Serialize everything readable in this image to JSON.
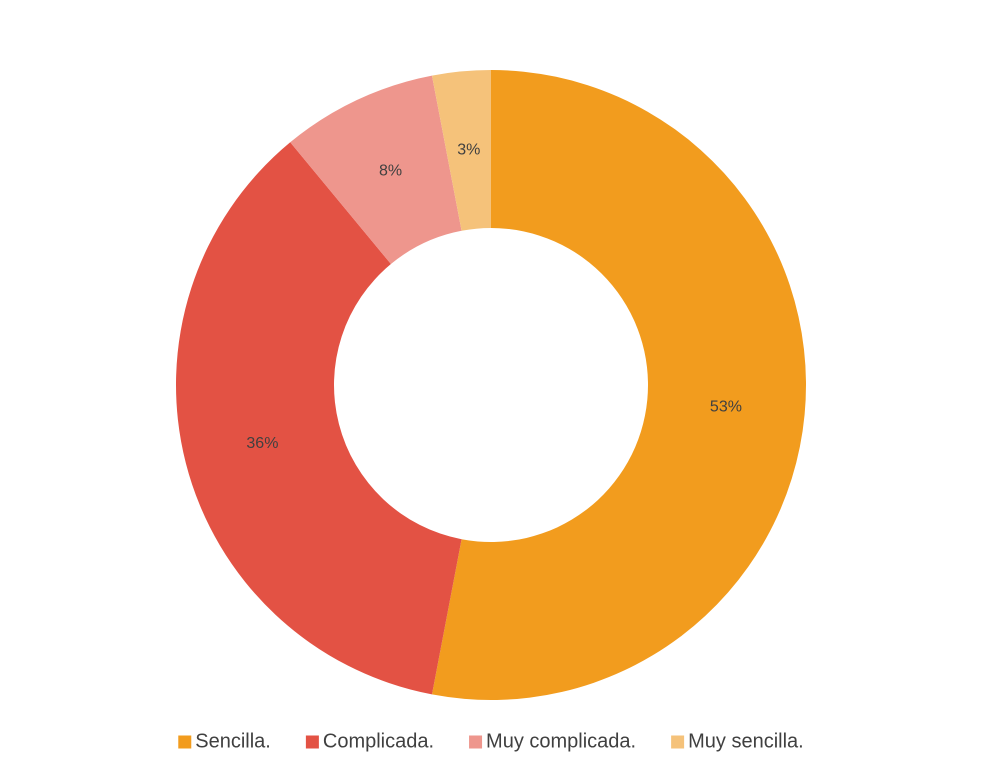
{
  "chart_data": {
    "type": "donut",
    "categories": [
      "Sencilla.",
      "Complicada.",
      "Muy complicada.",
      "Muy sencilla."
    ],
    "values": [
      53,
      36,
      8,
      3
    ],
    "value_labels": [
      "53%",
      "36%",
      "8%",
      "3%"
    ],
    "colors": [
      "#f29c1e",
      "#e35244",
      "#ee968d",
      "#f5c27a"
    ],
    "legend": "bottom"
  }
}
